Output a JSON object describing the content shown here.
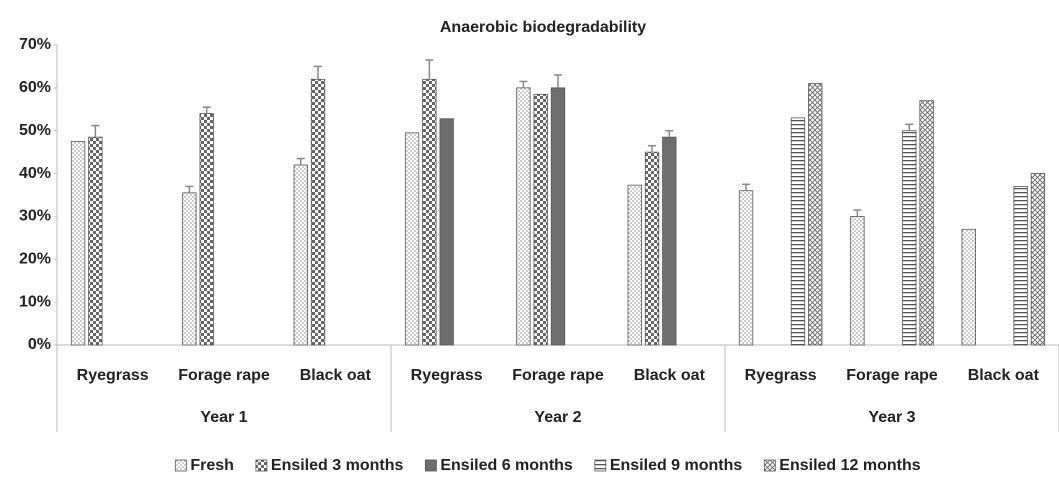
{
  "chart_data": {
    "type": "grouped_bar",
    "title": "Anaerobic biodegradability",
    "categories": [
      "Ryegrass",
      "Forage rape",
      "Black oat",
      "Ryegrass",
      "Forage rape",
      "Black oat",
      "Ryegrass",
      "Forage rape",
      "Black oat"
    ],
    "groups": [
      "Year 1",
      "Year 2",
      "Year 3"
    ],
    "series": [
      {
        "name": "Fresh",
        "color": "#ffffff",
        "pattern": "dots",
        "values": [
          47.5,
          35.5,
          42,
          49.5,
          60,
          37.3,
          36,
          30,
          27
        ],
        "errors": [
          null,
          1.5,
          1.5,
          null,
          1.5,
          null,
          1.5,
          1.5,
          null
        ]
      },
      {
        "name": "Ensiled 3 months",
        "color": "#ffffff",
        "pattern": "checker",
        "values": [
          48.5,
          54,
          62,
          62,
          58.5,
          45,
          null,
          null,
          null
        ],
        "errors": [
          2.7,
          1.5,
          3,
          4.5,
          null,
          1.5,
          null,
          null,
          null
        ]
      },
      {
        "name": "Ensiled 6 months",
        "color": "#6e6e6e",
        "pattern": "solid",
        "values": [
          null,
          null,
          null,
          52.8,
          60,
          48.5,
          null,
          null,
          null
        ],
        "errors": [
          null,
          null,
          null,
          null,
          3,
          1.5,
          null,
          null,
          null
        ]
      },
      {
        "name": "Ensiled 9 months",
        "color": "#ffffff",
        "pattern": "hlines",
        "values": [
          null,
          null,
          null,
          null,
          null,
          null,
          53,
          50,
          37
        ],
        "errors": [
          null,
          null,
          null,
          null,
          null,
          null,
          null,
          1.5,
          null
        ]
      },
      {
        "name": "Ensiled 12 months",
        "color": "#ffffff",
        "pattern": "cross",
        "values": [
          null,
          null,
          null,
          null,
          null,
          null,
          61,
          57,
          40
        ],
        "errors": [
          null,
          null,
          null,
          null,
          null,
          null,
          null,
          null,
          null
        ]
      }
    ],
    "ylim": [
      0,
      70
    ],
    "yticks": [
      {
        "value": 0,
        "label": "0%"
      },
      {
        "value": 10,
        "label": "10%"
      },
      {
        "value": 20,
        "label": "20%"
      },
      {
        "value": 30,
        "label": "30%"
      },
      {
        "value": 40,
        "label": "40%"
      },
      {
        "value": 50,
        "label": "50%"
      },
      {
        "value": 60,
        "label": "60%"
      },
      {
        "value": 70,
        "label": "70%"
      }
    ],
    "legend": "bottom"
  }
}
